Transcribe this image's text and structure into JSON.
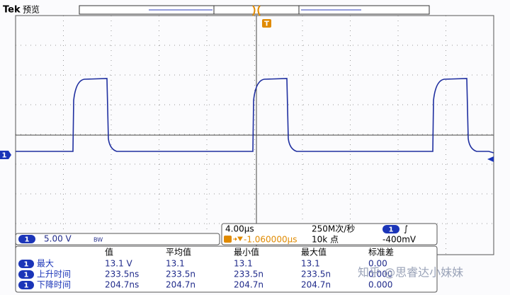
{
  "header": {
    "brand": "Tek",
    "mode": "预览"
  },
  "markers": {
    "trigger": "T",
    "channel": "1"
  },
  "channel_panel": {
    "channel": "1",
    "scale": "5.00 V",
    "bandwidth": "BW"
  },
  "timebase_panel": {
    "time_per_div": "4.00μs",
    "sample_rate": "250M次/秒",
    "trigger_channel": "1",
    "trigger_slope": "∫",
    "trigger_position": "-1.060000μs",
    "record_length": "10k 点",
    "trigger_level": "-400mV"
  },
  "measurements": {
    "headers": [
      "值",
      "平均值",
      "最小值",
      "最大值",
      "标准差"
    ],
    "rows": [
      {
        "channel": "1",
        "name": "最大",
        "values": [
          "13.1 V",
          "13.1",
          "13.1",
          "13.1",
          "0.00"
        ]
      },
      {
        "channel": "1",
        "name": "上升时间",
        "values": [
          "233.5ns",
          "233.5n",
          "233.5n",
          "233.5n",
          "0.000"
        ]
      },
      {
        "channel": "1",
        "name": "下降时间",
        "values": [
          "204.7ns",
          "204.7n",
          "204.7n",
          "204.7n",
          "0.000"
        ]
      }
    ]
  },
  "watermark": "知乎 @思睿达小妹妹"
}
